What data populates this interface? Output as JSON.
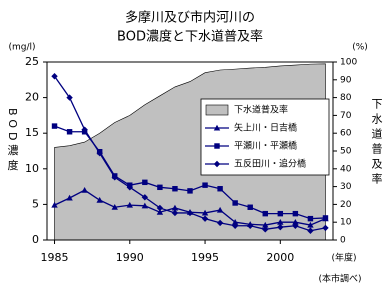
{
  "chart_data": {
    "type": "line",
    "title": [
      "多摩川及び市内河川の",
      "BOD濃度と下水道普及率"
    ],
    "y_label": "(mg/l)",
    "y2_label": "(%)",
    "y_axis_title": "BOD濃度",
    "y2_axis_title": "下水道普及率",
    "x_label": "(年度)",
    "note": "(本市調べ)",
    "x": [
      1985,
      1986,
      1987,
      1988,
      1989,
      1990,
      1991,
      1992,
      1993,
      1994,
      1995,
      1996,
      1997,
      1998,
      1999,
      2000,
      2001,
      2002,
      2003
    ],
    "xlim": [
      1984.5,
      2003.5
    ],
    "xticks": [
      1985,
      1990,
      1995,
      2000
    ],
    "ylim": [
      0,
      25
    ],
    "yticks": [
      0,
      5,
      10,
      15,
      20,
      25
    ],
    "y2lim": [
      0,
      100
    ],
    "y2ticks": [
      0,
      10,
      20,
      30,
      40,
      50,
      60,
      70,
      80,
      90,
      100
    ],
    "legend": "right",
    "series": [
      {
        "name": "下水道普及率",
        "color": "#c0c0c0",
        "style": "area",
        "axis": "y2",
        "values": [
          52,
          53,
          55,
          60,
          66,
          70,
          76,
          81,
          86,
          89,
          94,
          95.5,
          96,
          96.6,
          97,
          97.8,
          98.3,
          98.8,
          99
        ]
      },
      {
        "name": "矢上川・日吉橋",
        "color": "#000080",
        "style": "line",
        "marker": "triangle",
        "values": [
          4.9,
          5.9,
          7,
          5.6,
          4.6,
          4.9,
          4.8,
          3.9,
          4.5,
          3.9,
          3.8,
          4.2,
          2.5,
          2.2,
          2.1,
          2.5,
          2.5,
          2.1,
          3
        ]
      },
      {
        "name": "平瀬川・平瀬橋",
        "color": "#000080",
        "style": "line",
        "marker": "square",
        "values": [
          16,
          15.2,
          15.2,
          12.4,
          9,
          7.7,
          8.1,
          7.4,
          7.2,
          6.9,
          7.7,
          7.2,
          5.2,
          4.6,
          3.7,
          3.7,
          3.7,
          3,
          3.1
        ]
      },
      {
        "name": "五反田川・追分橋",
        "color": "#000080",
        "style": "line",
        "marker": "diamond",
        "values": [
          23,
          20,
          15.5,
          12.2,
          8.8,
          7.4,
          6,
          4.5,
          3.8,
          3.8,
          3,
          2.4,
          2,
          2,
          1.5,
          1.8,
          2,
          1.3,
          1.7
        ]
      }
    ]
  }
}
